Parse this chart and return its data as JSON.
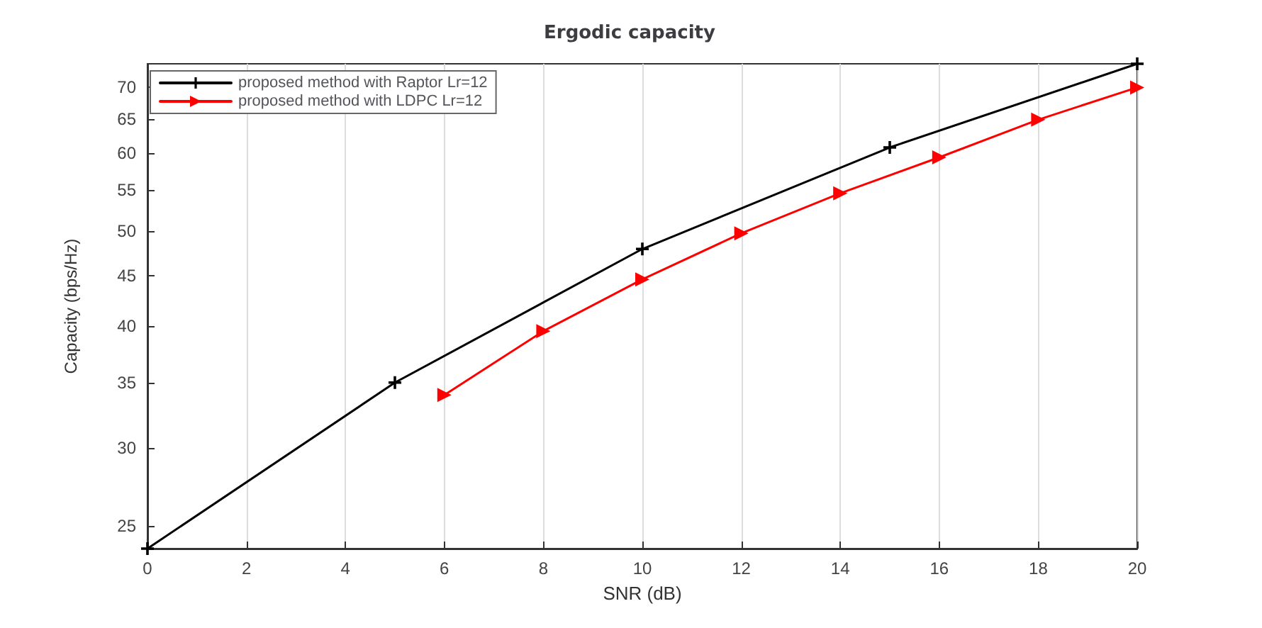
{
  "chart_data": {
    "type": "line",
    "title": "Ergodic capacity",
    "xlabel": "SNR (dB)",
    "ylabel": "Capacity (bps/Hz)",
    "log": "y",
    "grid": "x",
    "legend": "top left",
    "line_style": "solid",
    "xlim": [
      0,
      20
    ],
    "xticks": [
      0,
      2,
      4,
      6,
      8,
      10,
      12,
      14,
      16,
      18,
      20
    ],
    "ylim": [
      23.7,
      74
    ],
    "yticks": [
      25,
      30,
      35,
      40,
      45,
      50,
      55,
      60,
      65,
      70
    ],
    "series": [
      {
        "name": "proposed method with Raptor Lr=12",
        "color": "#000000",
        "marker": "cross",
        "x": [
          0,
          5,
          10,
          15,
          20
        ],
        "values": [
          23.7,
          35,
          47.9,
          60.8,
          74
        ]
      },
      {
        "name": "proposed method with LDPC Lr=12",
        "color": "#ff0000",
        "marker": "triangle",
        "x": [
          6,
          8,
          10,
          12,
          14,
          16,
          18,
          20
        ],
        "values": [
          34.0,
          39.5,
          44.6,
          49.7,
          54.6,
          59.4,
          64.9,
          70
        ]
      }
    ]
  }
}
